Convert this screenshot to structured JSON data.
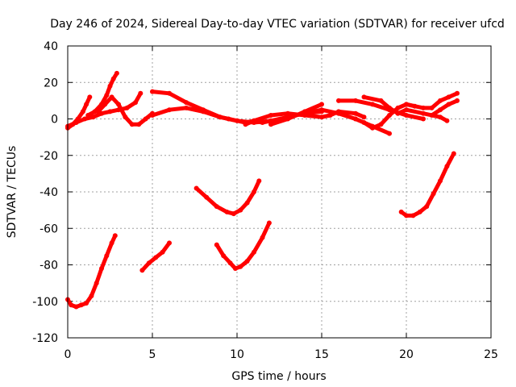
{
  "chart_data": {
    "type": "scatter",
    "title": "Day 246 of 2024, Sidereal Day-to-day VTEC variation (SDTVAR) for receiver ufcd",
    "xlabel": "GPS time / hours",
    "ylabel": "SDTVAR / TECUs",
    "xlim": [
      0,
      25
    ],
    "ylim": [
      -120,
      40
    ],
    "xticks": [
      0,
      5,
      10,
      15,
      20,
      25
    ],
    "yticks": [
      -120,
      -100,
      -80,
      -60,
      -40,
      -20,
      0,
      20,
      40
    ],
    "grid": true,
    "series_color": "#ff0000",
    "series": [
      {
        "name": "s1",
        "x": [
          0.0,
          0.3,
          0.6,
          0.9,
          1.1,
          1.3
        ],
        "y": [
          -5,
          -3,
          0,
          4,
          8,
          12
        ]
      },
      {
        "name": "s2",
        "x": [
          1.2,
          1.6,
          2.0,
          2.3,
          2.5,
          2.7,
          2.9
        ],
        "y": [
          2,
          4,
          8,
          13,
          18,
          22,
          25
        ]
      },
      {
        "name": "s3",
        "x": [
          0.0,
          0.5,
          1.0,
          1.5,
          2.0,
          2.5,
          3.0,
          3.5,
          4.0,
          4.3
        ],
        "y": [
          -4,
          -2,
          0,
          1,
          3,
          4,
          5,
          6,
          9,
          14
        ]
      },
      {
        "name": "s4",
        "x": [
          1.8,
          2.2,
          2.6,
          3.0,
          3.4,
          3.8,
          4.2,
          4.6,
          5.0
        ],
        "y": [
          4,
          8,
          12,
          8,
          1,
          -3,
          -3,
          0,
          3
        ]
      },
      {
        "name": "s5",
        "x": [
          5.0,
          6.0,
          7.0,
          8.0,
          9.0,
          9.5,
          10.0,
          10.5,
          11.0,
          11.5,
          12.0
        ],
        "y": [
          15,
          14,
          9,
          5,
          1,
          0,
          -1,
          -2,
          -1,
          -2,
          -1
        ]
      },
      {
        "name": "s6",
        "x": [
          5.0,
          6.0,
          7.0,
          8.0,
          9.0,
          10.0,
          11.0,
          12.0,
          13.0,
          14.0,
          15.0
        ],
        "y": [
          2,
          5,
          6,
          4,
          1,
          -1,
          -2,
          -1,
          1,
          3,
          4
        ]
      },
      {
        "name": "s7",
        "x": [
          10.5,
          11.0,
          12.0,
          13.0,
          14.0,
          15.0,
          15.5,
          16.0,
          17.0,
          17.5
        ],
        "y": [
          -3,
          -1,
          2,
          3,
          2,
          1,
          2,
          4,
          3,
          1
        ]
      },
      {
        "name": "s8",
        "x": [
          12.0,
          13.0,
          14.0,
          15.0
        ],
        "y": [
          -3,
          0,
          4,
          8
        ]
      },
      {
        "name": "s9",
        "x": [
          14.0,
          15.0,
          16.0,
          17.0,
          18.0,
          19.0
        ],
        "y": [
          3,
          5,
          3,
          0,
          -4,
          -8
        ]
      },
      {
        "name": "s10",
        "x": [
          16.0,
          17.0,
          18.0,
          19.0,
          20.0,
          21.0
        ],
        "y": [
          10,
          10,
          8,
          5,
          2,
          0
        ]
      },
      {
        "name": "s11",
        "x": [
          17.0,
          17.5,
          18.0,
          18.5,
          19.0,
          19.5,
          20.0,
          20.5
        ],
        "y": [
          0,
          -2,
          -5,
          -3,
          2,
          6,
          8,
          7
        ]
      },
      {
        "name": "s12",
        "x": [
          17.5,
          18.5,
          19.0,
          19.5,
          20.0,
          21.0,
          22.0,
          22.4
        ],
        "y": [
          12,
          10,
          6,
          3,
          5,
          3,
          1,
          -1
        ]
      },
      {
        "name": "s13",
        "x": [
          20.0,
          21.0,
          21.5,
          22.0,
          22.5,
          23.0
        ],
        "y": [
          8,
          6,
          6,
          10,
          12,
          14
        ]
      },
      {
        "name": "s14",
        "x": [
          21.5,
          22.0,
          22.5,
          23.0
        ],
        "y": [
          2,
          5,
          8,
          10
        ]
      },
      {
        "name": "s15",
        "x": [
          0.0,
          0.2,
          0.5,
          0.8,
          1.1,
          1.4,
          1.7,
          2.0,
          2.3,
          2.6,
          2.8
        ],
        "y": [
          -99,
          -102,
          -103,
          -102,
          -101,
          -97,
          -90,
          -82,
          -75,
          -68,
          -64
        ]
      },
      {
        "name": "s16",
        "x": [
          4.4,
          4.8,
          5.2,
          5.6,
          6.0
        ],
        "y": [
          -83,
          -79,
          -76,
          -73,
          -68
        ]
      },
      {
        "name": "s17",
        "x": [
          7.6,
          8.2,
          8.8,
          9.4,
          9.8,
          10.2,
          10.6,
          11.0,
          11.3
        ],
        "y": [
          -38,
          -43,
          -48,
          -51,
          -52,
          -50,
          -46,
          -40,
          -34
        ]
      },
      {
        "name": "s18",
        "x": [
          8.8,
          9.2,
          9.6,
          9.9,
          10.2,
          10.6,
          11.0,
          11.5,
          11.9
        ],
        "y": [
          -69,
          -75,
          -79,
          -82,
          -81,
          -78,
          -73,
          -65,
          -57
        ]
      },
      {
        "name": "s19",
        "x": [
          19.7,
          20.0,
          20.4,
          20.8,
          21.2,
          21.6,
          22.0,
          22.4,
          22.8
        ],
        "y": [
          -51,
          -53,
          -53,
          -51,
          -48,
          -41,
          -34,
          -26,
          -19
        ]
      }
    ]
  }
}
